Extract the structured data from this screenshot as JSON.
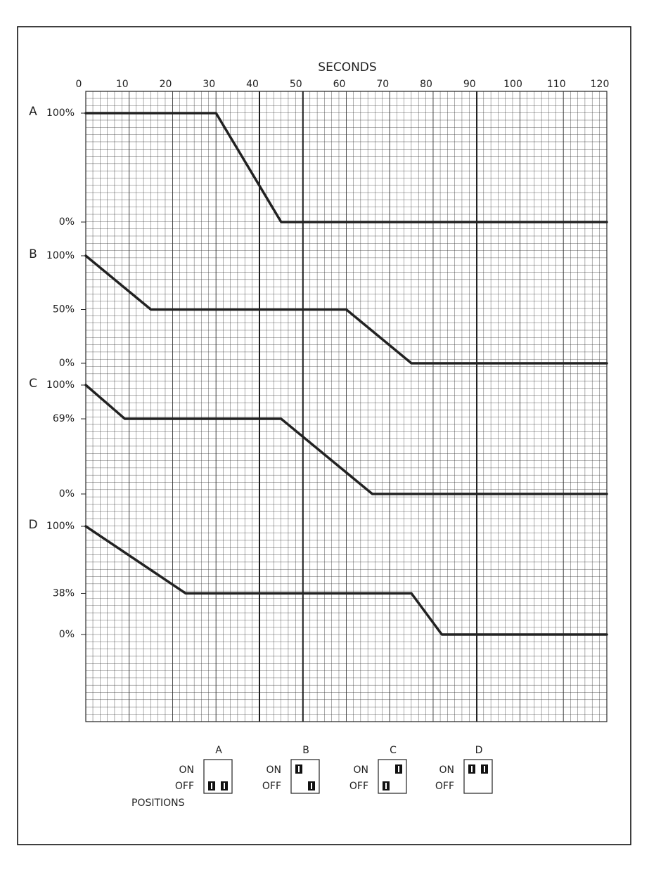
{
  "chart_data": [
    {
      "type": "line",
      "title": "A",
      "xlabel": "SECONDS",
      "xlim": [
        0,
        120
      ],
      "xticks": [
        0,
        10,
        20,
        30,
        40,
        50,
        60,
        70,
        80,
        90,
        100,
        110,
        120
      ],
      "x": [
        0,
        30,
        45,
        120
      ],
      "values": [
        100,
        100,
        0,
        0
      ],
      "color": "#222222",
      "ylim": [
        0,
        100
      ],
      "yticks": [
        {
          "value": 100,
          "label": "100%"
        },
        {
          "value": 0,
          "label": "0%"
        }
      ]
    },
    {
      "type": "line",
      "title": "B",
      "x": [
        0,
        15,
        60,
        75,
        120
      ],
      "values": [
        100,
        50,
        50,
        0,
        0
      ],
      "color": "#222222",
      "ylim": [
        0,
        100
      ],
      "yticks": [
        {
          "value": 100,
          "label": "100%"
        },
        {
          "value": 50,
          "label": "50%"
        },
        {
          "value": 0,
          "label": "0%"
        }
      ]
    },
    {
      "type": "line",
      "title": "C",
      "x": [
        0,
        9,
        45,
        66,
        120
      ],
      "values": [
        100,
        69,
        69,
        0,
        0
      ],
      "color": "#222222",
      "ylim": [
        0,
        100
      ],
      "yticks": [
        {
          "value": 100,
          "label": "100%"
        },
        {
          "value": 69,
          "label": "69%"
        },
        {
          "value": 0,
          "label": "0%"
        }
      ]
    },
    {
      "type": "line",
      "title": "D",
      "x": [
        0,
        23,
        75,
        82,
        120
      ],
      "values": [
        100,
        38,
        38,
        0,
        0
      ],
      "color": "#222222",
      "ylim": [
        0,
        100
      ],
      "yticks": [
        {
          "value": 100,
          "label": "100%"
        },
        {
          "value": 38,
          "label": "38%"
        },
        {
          "value": 0,
          "label": "0%"
        }
      ]
    }
  ],
  "switch_positions": {
    "label": "POSITIONS",
    "on": "ON",
    "off": "OFF",
    "settings": [
      {
        "name": "A",
        "on": [
          false,
          false
        ]
      },
      {
        "name": "B",
        "on": [
          true,
          false
        ]
      },
      {
        "name": "C",
        "on": [
          false,
          true
        ]
      },
      {
        "name": "D",
        "on": [
          true,
          true
        ]
      }
    ]
  }
}
